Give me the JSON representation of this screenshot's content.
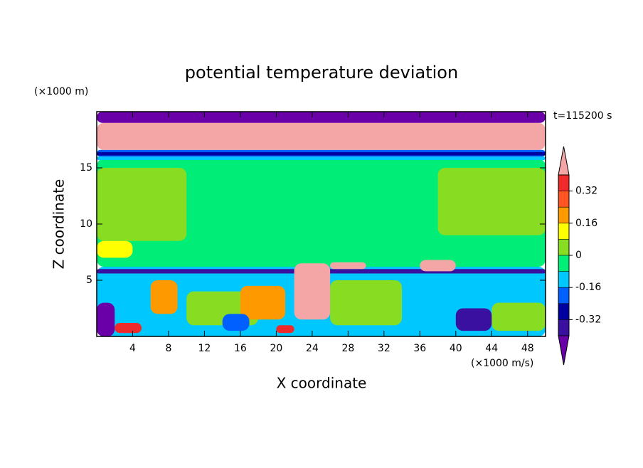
{
  "chart_data": {
    "type": "contourf",
    "title": "potential temperature deviation",
    "x_label": "X coordinate",
    "y_label": "Z coordinate",
    "x_unit": "(×1000 m/s)",
    "y_unit": "(×1000 m)",
    "annotation": "t=115200 s",
    "xlim": [
      0,
      50
    ],
    "ylim": [
      0,
      20
    ],
    "xticks": [
      4,
      8,
      12,
      16,
      20,
      24,
      28,
      32,
      36,
      40,
      44,
      48
    ],
    "yticks": [
      5,
      10,
      15
    ],
    "levels": [
      -0.4,
      -0.32,
      -0.24,
      -0.16,
      -0.08,
      0,
      0.08,
      0.16,
      0.24,
      0.32,
      0.4
    ],
    "colors": [
      "#6a00a8",
      "#3a10a0",
      "#0000a0",
      "#0060ff",
      "#00c8ff",
      "#00ee77",
      "#88dd22",
      "#ffff00",
      "#ff9900",
      "#ff5522",
      "#ee2a2a",
      "#f4a6a6"
    ],
    "colorbar_ticks": [
      -0.32,
      -0.16,
      0,
      0.16,
      0.32
    ],
    "field": [
      {
        "x": [
          0,
          50
        ],
        "z": [
          0,
          6.2
        ],
        "value": -0.12
      },
      {
        "x": [
          0,
          50
        ],
        "z": [
          6.2,
          15.8
        ],
        "value": -0.04
      },
      {
        "x": [
          0,
          50
        ],
        "z": [
          5.6,
          6.0
        ],
        "value": -0.36
      },
      {
        "x": [
          10,
          18
        ],
        "z": [
          1,
          4
        ],
        "value": 0.04
      },
      {
        "x": [
          26,
          34
        ],
        "z": [
          1,
          5
        ],
        "value": 0.04
      },
      {
        "x": [
          44,
          50
        ],
        "z": [
          0.5,
          3
        ],
        "value": 0.04
      },
      {
        "x": [
          6,
          9
        ],
        "z": [
          2,
          5
        ],
        "value": 0.2
      },
      {
        "x": [
          16,
          21
        ],
        "z": [
          1.5,
          4.5
        ],
        "value": 0.2
      },
      {
        "x": [
          2,
          5
        ],
        "z": [
          0.3,
          1.2
        ],
        "value": 0.36
      },
      {
        "x": [
          20,
          22
        ],
        "z": [
          0.3,
          1
        ],
        "value": 0.36
      },
      {
        "x": [
          0,
          2
        ],
        "z": [
          0,
          3
        ],
        "value": -0.44
      },
      {
        "x": [
          40,
          44
        ],
        "z": [
          0.5,
          2.5
        ],
        "value": -0.36
      },
      {
        "x": [
          14,
          17
        ],
        "z": [
          0.5,
          2
        ],
        "value": -0.2
      },
      {
        "x": [
          22,
          26
        ],
        "z": [
          1.5,
          6.5
        ],
        "value": 0.44
      },
      {
        "x": [
          26,
          30
        ],
        "z": [
          6,
          6.6
        ],
        "value": 0.44
      },
      {
        "x": [
          36,
          40
        ],
        "z": [
          5.8,
          6.8
        ],
        "value": 0.44
      },
      {
        "x": [
          0,
          10
        ],
        "z": [
          8.5,
          15
        ],
        "value": 0.04
      },
      {
        "x": [
          38,
          50
        ],
        "z": [
          9,
          15
        ],
        "value": 0.04
      },
      {
        "x": [
          0,
          4
        ],
        "z": [
          7,
          8.5
        ],
        "value": 0.12
      },
      {
        "x": [
          0,
          50
        ],
        "z": [
          15.7,
          16
        ],
        "value": -0.12
      },
      {
        "x": [
          0,
          50
        ],
        "z": [
          16,
          16.6
        ],
        "value": -0.2
      },
      {
        "x": [
          0,
          50
        ],
        "z": [
          16.1,
          16.4
        ],
        "value": -0.28
      },
      {
        "x": [
          0,
          50
        ],
        "z": [
          16.6,
          19
        ],
        "value": 0.44
      },
      {
        "x": [
          0,
          50
        ],
        "z": [
          19,
          20
        ],
        "value": -0.44
      }
    ]
  }
}
